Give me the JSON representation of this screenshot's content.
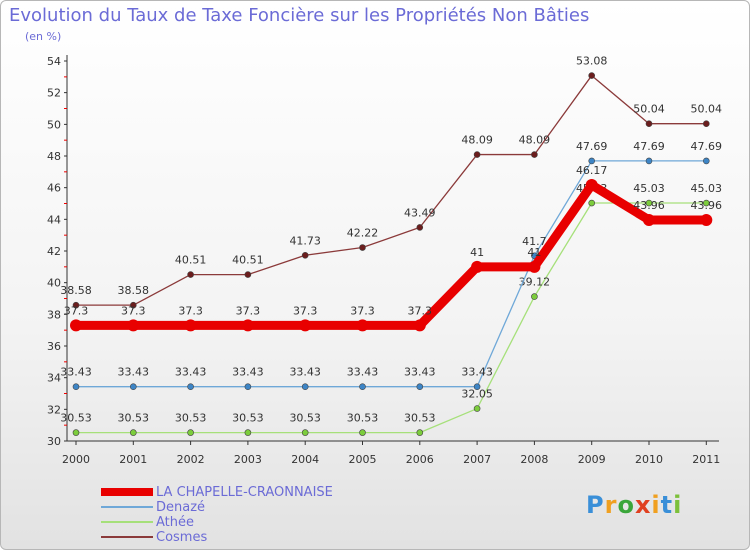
{
  "chart_data": {
    "type": "line",
    "title": "Evolution du Taux de Taxe Foncière sur les Propriétés Non Bâties",
    "unit_label": "(en %)",
    "categories": [
      "2000",
      "2001",
      "2002",
      "2003",
      "2004",
      "2005",
      "2006",
      "2007",
      "2008",
      "2009",
      "2010",
      "2011"
    ],
    "ylim": [
      30,
      54
    ],
    "yticks": [
      30,
      32,
      34,
      36,
      38,
      40,
      42,
      44,
      46,
      48,
      50,
      52,
      54
    ],
    "grid": false,
    "legend_position": "bottom-left",
    "series": [
      {
        "name": "LA CHAPELLE-CRAONNAISE",
        "color": "#e80000",
        "marker": "#e80000",
        "values": [
          37.3,
          37.3,
          37.3,
          37.3,
          37.3,
          37.3,
          37.3,
          41,
          41,
          46.17,
          43.96,
          43.96
        ],
        "labels": [
          "37.3",
          "37.3",
          "37.3",
          "37.3",
          "37.3",
          "37.3",
          "37.3",
          "41",
          "41",
          "46.17",
          "43.96",
          "43.96"
        ]
      },
      {
        "name": "Denazé",
        "color": "#6fa8d8",
        "marker": "#3d85c6",
        "values": [
          33.43,
          33.43,
          33.43,
          33.43,
          33.43,
          33.43,
          33.43,
          33.43,
          41.7,
          47.69,
          47.69,
          47.69
        ],
        "labels": [
          "33.43",
          "33.43",
          "33.43",
          "33.43",
          "33.43",
          "33.43",
          "33.43",
          "33.43",
          "41.7",
          "47.69",
          "47.69",
          "47.69"
        ]
      },
      {
        "name": "Athée",
        "color": "#a6e07a",
        "marker": "#7ccd3c",
        "values": [
          30.53,
          30.53,
          30.53,
          30.53,
          30.53,
          30.53,
          30.53,
          32.05,
          39.12,
          45.03,
          45.03,
          45.03
        ],
        "labels": [
          "30.53",
          "30.53",
          "30.53",
          "30.53",
          "30.53",
          "30.53",
          "30.53",
          "32.05",
          "39.12",
          "45.03",
          "45.03",
          "45.03"
        ]
      },
      {
        "name": "Cosmes",
        "color": "#8b3a3a",
        "marker": "#6b1d1d",
        "values": [
          38.58,
          38.58,
          40.51,
          40.51,
          41.73,
          42.22,
          43.49,
          48.09,
          48.09,
          53.08,
          50.04,
          50.04
        ],
        "labels": [
          "38.58",
          "38.58",
          "40.51",
          "40.51",
          "41.73",
          "42.22",
          "43.49",
          "48.09",
          "48.09",
          "53.08",
          "50.04",
          "50.04"
        ]
      }
    ]
  },
  "logo": {
    "letters": [
      "P",
      "r",
      "o",
      "x",
      "i",
      "t",
      "i"
    ],
    "colors": [
      "#3a8fd8",
      "#f0a020",
      "#3aa63a",
      "#e04020",
      "#f0a020",
      "#3a8fd8",
      "#7cc03a"
    ]
  }
}
